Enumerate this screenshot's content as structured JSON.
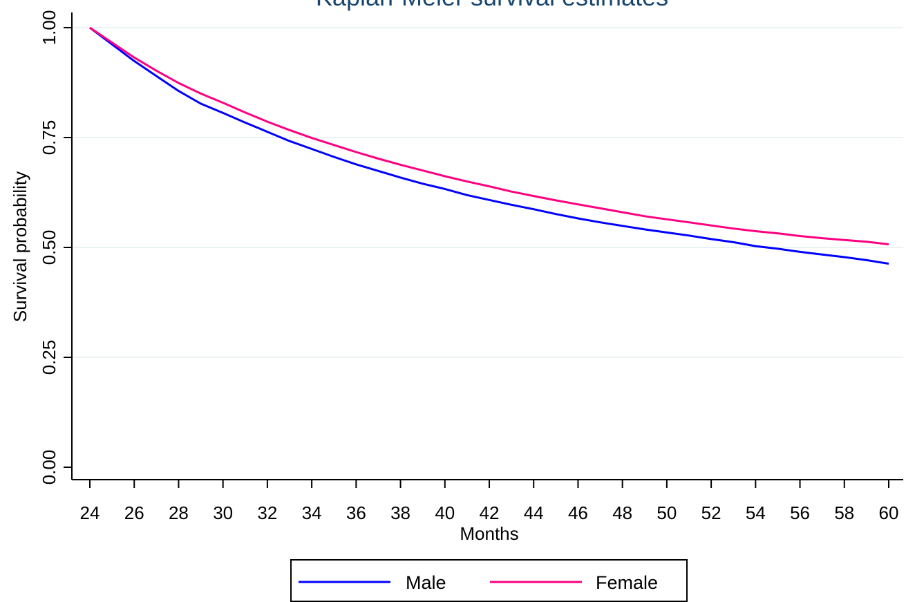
{
  "chart_data": {
    "type": "line",
    "title": "Kaplan-Meier survival estimates",
    "xlabel": "Months",
    "ylabel": "Survival probability",
    "xlim": [
      24,
      60
    ],
    "ylim": [
      0,
      1
    ],
    "x_ticks": [
      "24",
      "26",
      "28",
      "30",
      "32",
      "34",
      "36",
      "38",
      "40",
      "42",
      "44",
      "46",
      "48",
      "50",
      "52",
      "54",
      "56",
      "58",
      "60"
    ],
    "y_ticks": [
      "0.00",
      "0.25",
      "0.50",
      "0.75",
      "1.00"
    ],
    "grid": "horizontal",
    "legend_position": "bottom",
    "colors": {
      "title": "#1a476f",
      "grid": "#eaf2f3",
      "male": "#0000ff",
      "female": "#ff0080"
    },
    "x": [
      24,
      25,
      26,
      27,
      28,
      29,
      30,
      31,
      32,
      33,
      34,
      35,
      36,
      37,
      38,
      39,
      40,
      41,
      42,
      43,
      44,
      45,
      46,
      47,
      48,
      49,
      50,
      51,
      52,
      53,
      54,
      55,
      56,
      57,
      58,
      59,
      60
    ],
    "series": [
      {
        "name": "Male",
        "values": [
          1.0,
          0.962,
          0.924,
          0.89,
          0.856,
          0.827,
          0.806,
          0.784,
          0.763,
          0.742,
          0.724,
          0.706,
          0.689,
          0.674,
          0.659,
          0.645,
          0.633,
          0.619,
          0.608,
          0.597,
          0.587,
          0.576,
          0.566,
          0.557,
          0.549,
          0.541,
          0.534,
          0.527,
          0.519,
          0.512,
          0.503,
          0.497,
          0.49,
          0.484,
          0.478,
          0.471,
          0.463
        ]
      },
      {
        "name": "Female",
        "values": [
          1.0,
          0.966,
          0.932,
          0.902,
          0.874,
          0.85,
          0.829,
          0.807,
          0.786,
          0.767,
          0.749,
          0.733,
          0.717,
          0.702,
          0.688,
          0.675,
          0.662,
          0.65,
          0.639,
          0.627,
          0.617,
          0.607,
          0.598,
          0.589,
          0.58,
          0.571,
          0.564,
          0.557,
          0.55,
          0.543,
          0.537,
          0.532,
          0.526,
          0.521,
          0.517,
          0.513,
          0.507
        ]
      }
    ]
  }
}
